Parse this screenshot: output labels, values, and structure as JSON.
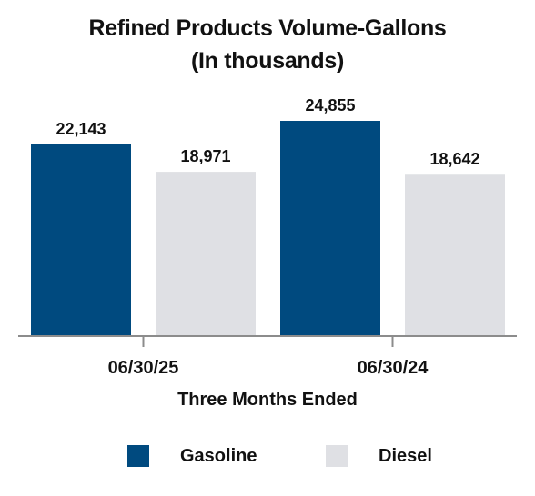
{
  "chart_data": {
    "type": "bar",
    "title": "Refined Products Volume-Gallons",
    "subtitle": "(In thousands)",
    "categories": [
      "06/30/25",
      "06/30/24"
    ],
    "series": [
      {
        "name": "Gasoline",
        "values": [
          22143,
          24855
        ],
        "labels": [
          "22,143",
          "24,855"
        ],
        "color": "#004a7f"
      },
      {
        "name": "Diesel",
        "values": [
          18971,
          18642
        ],
        "labels": [
          "18,971",
          "18,642"
        ],
        "color": "#dfe0e4"
      }
    ],
    "xlabel": "Three Months Ended",
    "ylabel": "",
    "ylim": [
      0,
      24855
    ],
    "grid": false,
    "legend_position": "bottom"
  }
}
